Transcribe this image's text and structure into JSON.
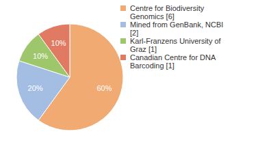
{
  "chart_data": {
    "type": "pie",
    "categories": [
      "Centre for Biodiversity Genomics [6]",
      "Mined from GenBank, NCBI [2]",
      "Karl-Franzens University of Graz [1]",
      "Canadian Centre for DNA Barcoding [1]"
    ],
    "values": [
      60,
      20,
      10,
      10
    ],
    "value_labels": [
      "60%",
      "20%",
      "10%",
      "10%"
    ],
    "colors": [
      "#f0aa72",
      "#a4bee3",
      "#9ec76c",
      "#e07a63"
    ],
    "data_labels": true,
    "legend": "upper right"
  }
}
